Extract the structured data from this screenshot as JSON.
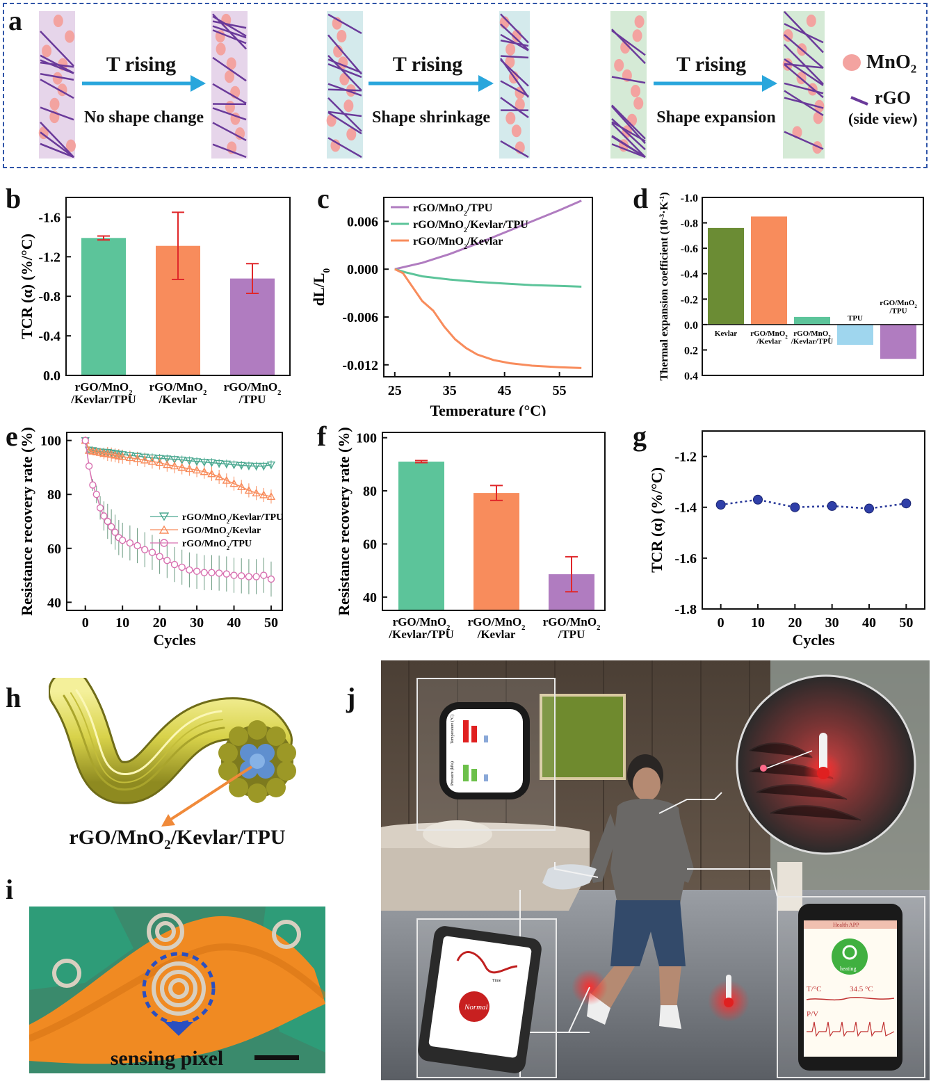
{
  "panel_labels": {
    "a": "a",
    "b": "b",
    "c": "c",
    "d": "d",
    "e": "e",
    "f": "f",
    "g": "g",
    "h": "h",
    "i": "i",
    "j": "j"
  },
  "panel_a": {
    "arrows": [
      {
        "top": "T rising",
        "bottom": "No shape change",
        "color": "#e6d5ea"
      },
      {
        "top": "T rising",
        "bottom": "Shape shrinkage",
        "color": "#d4eaec"
      },
      {
        "top": "T rising",
        "bottom": "Shape expansion",
        "color": "#d5ead6"
      }
    ],
    "legend": {
      "mno2": "MnO",
      "mno2_sub": "2",
      "rgo": "rGO",
      "rgo_note": "(side view)"
    }
  },
  "colors": {
    "green": "#5cc49a",
    "orange": "#f88c5c",
    "purple": "#b07cc0",
    "olive": "#6b8c34",
    "lightblue": "#9fd6ee",
    "red": "#e0272a"
  },
  "chart_data": [
    {
      "id": "b",
      "type": "bar",
      "ylabel": "TCR (α) (%/°C)",
      "ylim": [
        0.0,
        -1.8
      ],
      "yticks": [
        "-1.6",
        "-1.2",
        "-0.8",
        "-0.4",
        "0.0"
      ],
      "categories": [
        [
          "rGO/MnO",
          "2",
          "/Kevlar/TPU"
        ],
        [
          "rGO/MnO",
          "2",
          "/Kevlar"
        ],
        [
          "rGO/MnO",
          "2",
          "/TPU"
        ]
      ],
      "values": [
        -1.39,
        -1.31,
        -0.98
      ],
      "errors": [
        0.02,
        0.34,
        0.15
      ]
    },
    {
      "id": "c",
      "type": "line",
      "xlabel": "Temperature (°C)",
      "ylabel": "dL/L",
      "ylabel_sub": "0",
      "xlim": [
        23,
        61
      ],
      "ylim": [
        -0.0135,
        0.009
      ],
      "xticks": [
        "25",
        "35",
        "45",
        "55"
      ],
      "yticks": [
        "0.006",
        "0.000",
        "-0.006",
        "-0.012"
      ],
      "series": [
        {
          "name": "rGO/MnO",
          "name_sub": "2",
          "name_suffix": "/TPU",
          "x": [
            25,
            30,
            35,
            40,
            45,
            50,
            55,
            59
          ],
          "y": [
            0.0,
            0.0008,
            0.0019,
            0.0032,
            0.0046,
            0.006,
            0.0074,
            0.0086
          ]
        },
        {
          "name": "rGO/MnO",
          "name_sub": "2",
          "name_suffix": "/Kevlar/TPU",
          "x": [
            25,
            27,
            30,
            35,
            40,
            45,
            50,
            55,
            59
          ],
          "y": [
            0.0,
            -0.0004,
            -0.0009,
            -0.0013,
            -0.0016,
            -0.0018,
            -0.002,
            -0.0021,
            -0.0022
          ]
        },
        {
          "name": "rGO/MnO",
          "name_sub": "2",
          "name_suffix": "/Kevlar",
          "x": [
            25,
            26.5,
            28,
            30,
            32,
            34,
            36,
            38,
            40,
            43,
            46,
            50,
            55,
            59
          ],
          "y": [
            0.0,
            -0.0005,
            -0.002,
            -0.004,
            -0.0052,
            -0.0072,
            -0.0088,
            -0.0099,
            -0.0107,
            -0.0114,
            -0.0118,
            -0.0121,
            -0.0123,
            -0.0124
          ]
        }
      ]
    },
    {
      "id": "d",
      "type": "bar",
      "ylabel": "Thermal expansion coefficient (10",
      "ylabel_sup": "-3",
      "ylabel_mid": "·K",
      "ylabel_sup2": "-1",
      "ylabel_end": ")",
      "ylim": [
        0.4,
        -1.0
      ],
      "yticks": [
        "-1.0",
        "-0.8",
        "-0.6",
        "-0.4",
        "-0.2",
        "0.0",
        "0.2",
        "0.4"
      ],
      "categories": [
        [
          "Kevlar",
          "",
          ""
        ],
        [
          "rGO/MnO",
          "2",
          "/Kevlar"
        ],
        [
          "rGO/MnO",
          "2",
          "/Kevlar/TPU"
        ],
        [
          "TPU",
          "",
          ""
        ],
        [
          "rGO/MnO",
          "2",
          "/TPU"
        ]
      ],
      "values": [
        -0.76,
        -0.85,
        -0.06,
        0.16,
        0.27
      ]
    },
    {
      "id": "e",
      "type": "line",
      "xlabel": "Cycles",
      "ylabel": "Resistance recovery rate (%)",
      "xlim": [
        -5,
        53
      ],
      "ylim": [
        37,
        103
      ],
      "xticks": [
        "0",
        "10",
        "20",
        "30",
        "40",
        "50"
      ],
      "yticks": [
        "100",
        "80",
        "60",
        "40"
      ],
      "series": [
        {
          "name": "rGO/MnO",
          "name_sub": "2",
          "name_suffix": "/Kevlar/TPU",
          "x": [
            0,
            1,
            2,
            3,
            4,
            5,
            6,
            7,
            8,
            9,
            10,
            12,
            14,
            16,
            18,
            20,
            22,
            24,
            26,
            28,
            30,
            32,
            34,
            36,
            38,
            40,
            42,
            44,
            46,
            48,
            50
          ],
          "y": [
            100,
            96.5,
            96.3,
            96.0,
            95.8,
            95.7,
            95.6,
            95.4,
            95.2,
            95.0,
            94.8,
            94.5,
            94.2,
            93.9,
            93.6,
            93.4,
            93.2,
            93.0,
            92.8,
            92.5,
            92.2,
            92.0,
            91.8,
            91.5,
            91.3,
            91.0,
            90.8,
            90.6,
            90.5,
            90.5,
            91.0
          ]
        },
        {
          "name": "rGO/MnO",
          "name_sub": "2",
          "name_suffix": "/Kevlar",
          "x": [
            0,
            1,
            2,
            3,
            4,
            5,
            6,
            7,
            8,
            9,
            10,
            12,
            14,
            16,
            18,
            20,
            22,
            24,
            26,
            28,
            30,
            32,
            34,
            36,
            38,
            40,
            42,
            44,
            46,
            48,
            50
          ],
          "y": [
            100,
            96.3,
            96.0,
            95.7,
            95.5,
            95.2,
            95.0,
            94.8,
            94.5,
            94.2,
            94.0,
            93.6,
            93.2,
            92.7,
            92.2,
            91.8,
            91.0,
            90.5,
            90.0,
            89.5,
            89.0,
            88.4,
            87.6,
            86.5,
            85.2,
            84.0,
            82.8,
            81.5,
            80.5,
            79.8,
            79.2
          ]
        },
        {
          "name": "rGO/MnO",
          "name_sub": "2",
          "name_suffix": "/TPU",
          "x": [
            0,
            1,
            2,
            3,
            4,
            5,
            6,
            7,
            8,
            9,
            10,
            12,
            14,
            16,
            18,
            20,
            22,
            24,
            26,
            28,
            30,
            32,
            34,
            36,
            38,
            40,
            42,
            44,
            46,
            48,
            50
          ],
          "y": [
            100,
            90.5,
            83.5,
            80,
            75,
            72,
            70,
            68,
            66,
            64,
            63,
            62,
            61,
            59.5,
            58.5,
            57,
            55.5,
            54,
            53,
            52,
            51.5,
            51,
            51,
            50.8,
            50.5,
            50,
            49.8,
            49.5,
            49.5,
            50,
            48.6
          ]
        }
      ]
    },
    {
      "id": "f",
      "type": "bar",
      "ylabel": "Resistance recovery rate (%)",
      "ylim": [
        35,
        102
      ],
      "yticks": [
        "100",
        "80",
        "60",
        "40"
      ],
      "categories": [
        [
          "rGO/MnO",
          "2",
          "/Kevlar/TPU"
        ],
        [
          "rGO/MnO",
          "2",
          "/Kevlar"
        ],
        [
          "rGO/MnO",
          "2",
          "/TPU"
        ]
      ],
      "values": [
        91.0,
        79.2,
        48.6
      ],
      "errors": [
        0.4,
        2.8,
        6.6
      ]
    },
    {
      "id": "g",
      "type": "scatter",
      "xlabel": "Cycles",
      "ylabel": "TCR (α) (%/°C)",
      "xlim": [
        -5,
        55
      ],
      "ylim": [
        -1.8,
        -1.1
      ],
      "xticks": [
        "0",
        "10",
        "20",
        "30",
        "40",
        "50"
      ],
      "yticks": [
        "-1.2",
        "-1.4",
        "-1.6",
        "-1.8"
      ],
      "x": [
        0,
        10,
        20,
        30,
        40,
        50
      ],
      "y": [
        -1.39,
        -1.37,
        -1.4,
        -1.395,
        -1.405,
        -1.385
      ]
    }
  ],
  "panel_h": {
    "label": "rGO/MnO",
    "label_sub": "2",
    "label_suffix": "/Kevlar/TPU"
  },
  "panel_i": {
    "caption": "sensing pixel"
  },
  "panel_j": {
    "watch_axis1": "Temperature (°C)",
    "watch_axis2": "Pressure (kPa)",
    "tablet_xlabel": "Time",
    "tablet_badge": "Normal",
    "phone_title": "Health APP",
    "phone_button": "heating",
    "phone_temp_label": "T/°C",
    "phone_temp_value": "34.5 °C",
    "phone_pv_label": "P/V"
  }
}
